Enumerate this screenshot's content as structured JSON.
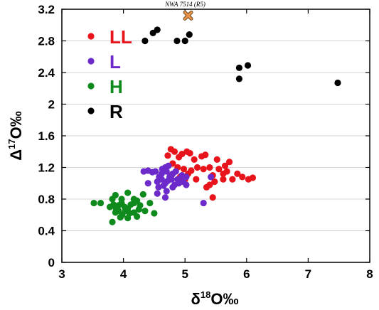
{
  "chart_data": {
    "type": "scatter",
    "xlabel": {
      "base": "δ",
      "sup": "18",
      "rest": "O‰"
    },
    "ylabel": {
      "base": "Δ",
      "sup": "17",
      "rest": "O‰"
    },
    "xlim": [
      3,
      8
    ],
    "ylim": [
      0,
      3.2
    ],
    "xticks": [
      3,
      4,
      5,
      6,
      7,
      8
    ],
    "yticks": [
      0,
      0.4,
      0.8,
      1.2,
      1.6,
      2,
      2.4,
      2.8,
      3.2
    ],
    "xtick_labels": [
      "3",
      "4",
      "5",
      "6",
      "7",
      "8"
    ],
    "ytick_labels": [
      "0",
      "0.4",
      "0.8",
      "1.2",
      "1.6",
      "2",
      "2.4",
      "2.8",
      "3.2"
    ],
    "grid": "horizontal",
    "legend_position": "top-left",
    "series": [
      {
        "name": "LL",
        "color": "#e8141b",
        "points": [
          [
            4.77,
            1.43
          ],
          [
            4.83,
            1.4
          ],
          [
            4.72,
            1.35
          ],
          [
            4.9,
            1.33
          ],
          [
            4.95,
            1.37
          ],
          [
            5.03,
            1.4
          ],
          [
            5.08,
            1.38
          ],
          [
            5.15,
            1.3
          ],
          [
            5.27,
            1.34
          ],
          [
            5.33,
            1.36
          ],
          [
            5.52,
            1.3
          ],
          [
            5.72,
            1.27
          ],
          [
            5.65,
            1.22
          ],
          [
            5.55,
            1.18
          ],
          [
            5.68,
            1.15
          ],
          [
            5.85,
            1.12
          ],
          [
            4.8,
            1.25
          ],
          [
            4.88,
            1.2
          ],
          [
            4.98,
            1.18
          ],
          [
            5.05,
            1.12
          ],
          [
            5.1,
            1.16
          ],
          [
            5.2,
            1.2
          ],
          [
            5.3,
            1.18
          ],
          [
            5.4,
            1.2
          ],
          [
            5.45,
            1.1
          ],
          [
            5.62,
            1.12
          ],
          [
            4.78,
            1.1
          ],
          [
            4.92,
            1.08
          ],
          [
            5.0,
            1.05
          ],
          [
            5.18,
            1.05
          ],
          [
            5.48,
            1.02
          ],
          [
            5.62,
            1.05
          ],
          [
            5.77,
            1.05
          ],
          [
            5.4,
            0.98
          ],
          [
            5.35,
            0.95
          ],
          [
            5.45,
            0.82
          ],
          [
            5.93,
            1.08
          ],
          [
            6.03,
            1.05
          ],
          [
            6.1,
            1.07
          ]
        ]
      },
      {
        "name": "L",
        "color": "#6b2ac9",
        "points": [
          [
            4.33,
            1.15
          ],
          [
            4.4,
            1.16
          ],
          [
            4.47,
            1.14
          ],
          [
            4.52,
            1.15
          ],
          [
            4.63,
            1.18
          ],
          [
            4.68,
            1.2
          ],
          [
            4.73,
            1.22
          ],
          [
            4.58,
            1.08
          ],
          [
            4.62,
            1.12
          ],
          [
            4.7,
            1.15
          ],
          [
            4.75,
            1.08
          ],
          [
            4.8,
            1.12
          ],
          [
            4.85,
            1.15
          ],
          [
            4.88,
            1.05
          ],
          [
            4.95,
            1.1
          ],
          [
            5.02,
            1.08
          ],
          [
            4.55,
            1.02
          ],
          [
            4.62,
            1.05
          ],
          [
            4.68,
            1.0
          ],
          [
            4.72,
            1.03
          ],
          [
            4.78,
            1.05
          ],
          [
            4.83,
            0.98
          ],
          [
            4.9,
            1.0
          ],
          [
            4.97,
            1.02
          ],
          [
            5.02,
            0.98
          ],
          [
            4.4,
            1.0
          ],
          [
            4.57,
            0.95
          ],
          [
            4.65,
            0.97
          ],
          [
            4.7,
            0.9
          ],
          [
            4.8,
            0.95
          ],
          [
            4.55,
            0.87
          ],
          [
            4.68,
            0.82
          ],
          [
            5.3,
            0.75
          ],
          [
            5.42,
            1.08
          ]
        ]
      },
      {
        "name": "H",
        "color": "#0f8a1c",
        "points": [
          [
            3.52,
            0.75
          ],
          [
            3.63,
            0.75
          ],
          [
            3.82,
            0.8
          ],
          [
            3.87,
            0.85
          ],
          [
            3.97,
            0.8
          ],
          [
            4.07,
            0.88
          ],
          [
            4.17,
            0.8
          ],
          [
            4.32,
            0.86
          ],
          [
            4.43,
            0.75
          ],
          [
            3.78,
            0.7
          ],
          [
            3.84,
            0.73
          ],
          [
            3.88,
            0.68
          ],
          [
            3.92,
            0.72
          ],
          [
            3.97,
            0.75
          ],
          [
            4.02,
            0.7
          ],
          [
            4.07,
            0.68
          ],
          [
            4.12,
            0.73
          ],
          [
            4.17,
            0.75
          ],
          [
            4.22,
            0.78
          ],
          [
            4.27,
            0.72
          ],
          [
            3.87,
            0.63
          ],
          [
            3.92,
            0.65
          ],
          [
            3.98,
            0.6
          ],
          [
            4.03,
            0.65
          ],
          [
            4.1,
            0.62
          ],
          [
            4.17,
            0.63
          ],
          [
            4.25,
            0.67
          ],
          [
            4.35,
            0.65
          ],
          [
            4.5,
            0.62
          ],
          [
            3.95,
            0.57
          ],
          [
            4.07,
            0.56
          ],
          [
            4.22,
            0.58
          ],
          [
            3.82,
            0.51
          ]
        ]
      },
      {
        "name": "R",
        "color": "#000000",
        "points": [
          [
            4.35,
            2.8
          ],
          [
            4.48,
            2.9
          ],
          [
            4.55,
            2.94
          ],
          [
            4.87,
            2.8
          ],
          [
            5.0,
            2.8
          ],
          [
            5.07,
            2.88
          ],
          [
            5.88,
            2.46
          ],
          [
            5.88,
            2.32
          ],
          [
            6.02,
            2.49
          ],
          [
            7.48,
            2.27
          ]
        ]
      }
    ],
    "annotations": [
      {
        "text": "NWA 7514 (R5)",
        "x": 5.05,
        "y": 3.12,
        "marker": "x",
        "color": "#e8924a"
      }
    ]
  }
}
